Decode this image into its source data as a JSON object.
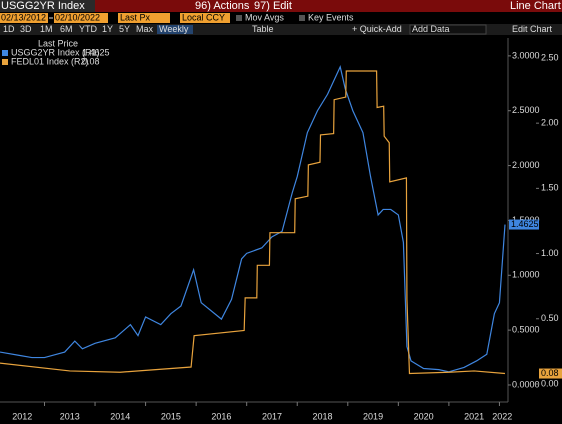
{
  "header": {
    "security": "USGG2YR Index",
    "actions": "96) Actions",
    "edit": "97) Edit",
    "view": "Line Chart"
  },
  "controls": {
    "start_date": "02/13/2012",
    "end_date": "02/10/2022",
    "field": "Last Px",
    "currency": "Local CCY",
    "mov_avgs": "Mov Avgs",
    "key_events": "Key Events",
    "ranges": [
      "1D",
      "3D",
      "1M",
      "6M",
      "YTD",
      "1Y",
      "5Y",
      "Max"
    ],
    "frequency": "Weekly",
    "table": "Table",
    "quick_add": "+ Quick-Add",
    "add_data": "Add Data",
    "edit_chart": "Edit Chart"
  },
  "chart_data": {
    "type": "line",
    "legend_title": "Last Price",
    "grid": false,
    "xlim": [
      2012.12,
      2022.11
    ],
    "xticks": [
      2012,
      2013,
      2014,
      2015,
      2016,
      2017,
      2018,
      2019,
      2020,
      2021,
      2022
    ],
    "ylim": [
      -0.137,
      3.163
    ],
    "yticks": [
      {
        "value": 0,
        "label": "0.0000"
      },
      {
        "value": 0.5,
        "label": "0.5000"
      },
      {
        "value": 1,
        "label": "1.0000"
      },
      {
        "value": 1.5,
        "label": "1.5000"
      },
      {
        "value": 2,
        "label": "2.0000"
      },
      {
        "value": 2.5,
        "label": "2.5000"
      },
      {
        "value": 3,
        "label": "3.0000"
      }
    ],
    "y2lim": [
      -0.123,
      2.653
    ],
    "y2ticks": [
      {
        "value": 0,
        "label": "0.00"
      },
      {
        "value": 0.5,
        "label": "0.50"
      },
      {
        "value": 1,
        "label": "1.00"
      },
      {
        "value": 1.5,
        "label": "1.50"
      },
      {
        "value": 2,
        "label": "2.00"
      },
      {
        "value": 2.5,
        "label": "2.50"
      }
    ],
    "series": [
      {
        "name": "USGG2YR Index (R1)",
        "color": "#3f86e0",
        "axis": "y",
        "x": [
          2012.12,
          2012.5,
          2012.75,
          2013.0,
          2013.4,
          2013.6,
          2013.75,
          2014.0,
          2014.4,
          2014.7,
          2014.85,
          2015.0,
          2015.3,
          2015.5,
          2015.7,
          2015.95,
          2016.1,
          2016.5,
          2016.7,
          2016.9,
          2017.0,
          2017.3,
          2017.5,
          2017.7,
          2017.9,
          2018.0,
          2018.2,
          2018.4,
          2018.6,
          2018.85,
          2018.95,
          2019.1,
          2019.3,
          2019.45,
          2019.6,
          2019.7,
          2019.85,
          2020.0,
          2020.1,
          2020.17,
          2020.25,
          2020.5,
          2020.8,
          2021.0,
          2021.3,
          2021.55,
          2021.75,
          2021.9,
          2022.0,
          2022.11
        ],
        "values": [
          0.3,
          0.27,
          0.25,
          0.25,
          0.3,
          0.4,
          0.33,
          0.38,
          0.43,
          0.55,
          0.45,
          0.62,
          0.55,
          0.65,
          0.72,
          1.05,
          0.75,
          0.6,
          0.78,
          1.15,
          1.2,
          1.25,
          1.35,
          1.4,
          1.75,
          1.9,
          2.3,
          2.5,
          2.65,
          2.9,
          2.7,
          2.5,
          2.3,
          1.9,
          1.55,
          1.6,
          1.6,
          1.55,
          1.3,
          0.35,
          0.22,
          0.15,
          0.14,
          0.12,
          0.16,
          0.22,
          0.28,
          0.65,
          0.75,
          1.4625
        ]
      },
      {
        "name": "FEDL01 Index (R2)",
        "color": "#e8a33d",
        "axis": "y2",
        "x": [
          2012.12,
          2013.5,
          2014.5,
          2015.9,
          2015.96,
          2016.95,
          2016.97,
          2017.2,
          2017.21,
          2017.45,
          2017.46,
          2017.95,
          2017.96,
          2018.21,
          2018.22,
          2018.45,
          2018.46,
          2018.72,
          2018.73,
          2018.96,
          2018.97,
          2019.57,
          2019.58,
          2019.71,
          2019.72,
          2019.82,
          2019.83,
          2020.16,
          2020.17,
          2020.22,
          2021.0,
          2021.5,
          2022.11
        ],
        "values": [
          0.16,
          0.1,
          0.09,
          0.13,
          0.37,
          0.41,
          0.66,
          0.66,
          0.91,
          0.91,
          1.16,
          1.16,
          1.42,
          1.44,
          1.68,
          1.7,
          1.91,
          1.92,
          2.18,
          2.2,
          2.4,
          2.4,
          2.12,
          2.13,
          1.9,
          1.85,
          1.55,
          1.58,
          0.65,
          0.08,
          0.09,
          0.1,
          0.08
        ]
      }
    ]
  }
}
